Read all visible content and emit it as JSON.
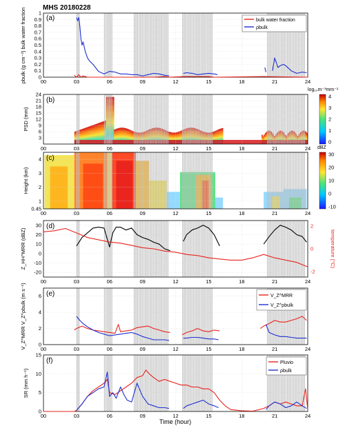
{
  "figure_title": "MHS 20180228",
  "x_axis": {
    "label": "Time (hour)",
    "ticks": [
      "00",
      "03",
      "06",
      "09",
      "12",
      "15",
      "18",
      "21",
      "24"
    ],
    "range": [
      0,
      24
    ]
  },
  "gray_shading_intervals_hours": [
    [
      3.0,
      3.3
    ],
    [
      5.5,
      6.3
    ],
    [
      8.2,
      11.4
    ],
    [
      12.6,
      15.4
    ],
    [
      20.3,
      23.8
    ]
  ],
  "colors": {
    "red": "#e8221c",
    "blue": "#1d2fd1",
    "black": "#000000",
    "gray": "#bdbdbd"
  },
  "colorbar_b": {
    "ticks": [
      "4",
      "3",
      "2",
      "1",
      "0"
    ],
    "unit": "log₁₀m⁻³mm⁻¹"
  },
  "colorbar_c": {
    "ticks": [
      "30",
      "20",
      "10",
      "0",
      "-10"
    ],
    "unit": "dBZ"
  },
  "chart_data": [
    {
      "panel": "(a)",
      "type": "line",
      "ylabel": "ρbulk (g cm⁻³) bulk water fraction",
      "ylim": [
        0,
        1
      ],
      "yticks": [
        "1",
        "0.9",
        "0.8",
        "0.7",
        "0.6",
        "0.5",
        "0.4",
        "0.3",
        "0.2",
        "0.1",
        "0"
      ],
      "legend": [
        "bulk water fraction",
        "ρbulk"
      ],
      "legend_position": "top-right",
      "series": [
        {
          "name": "bulk water fraction",
          "color": "red",
          "x": [
            2.8,
            3.0,
            3.2,
            3.4,
            3.6,
            4.0,
            6.0,
            8.0,
            10.0,
            11.0,
            11.5,
            12.7,
            15.0,
            15.5,
            20.0,
            24.0
          ],
          "y": [
            0.03,
            0.0,
            0.04,
            0.0,
            0.02,
            0.0,
            0.0,
            0.0,
            0.0,
            0.01,
            0.0,
            0.01,
            0.01,
            0.0,
            0.01,
            0.0
          ]
        },
        {
          "name": "ρbulk",
          "color": "blue",
          "x": [
            3.0,
            3.1,
            3.2,
            3.3,
            3.4,
            3.5,
            3.6,
            3.8,
            4.0,
            4.2,
            4.5,
            5.0,
            5.5,
            6.0,
            6.5,
            7.0,
            7.5,
            8.0,
            8.5,
            9.0,
            9.5,
            10.0,
            10.5,
            11.0,
            11.4,
            null,
            12.7,
            13.0,
            13.5,
            14.0,
            14.5,
            15.0,
            15.5,
            15.8,
            null,
            20.1,
            20.2,
            null,
            20.8,
            21.0,
            21.3,
            21.5,
            21.8,
            22.0,
            22.5,
            23.0,
            23.5,
            23.9
          ],
          "y": [
            0.93,
            0.88,
            0.93,
            0.8,
            0.6,
            0.5,
            0.55,
            0.4,
            0.3,
            0.25,
            0.2,
            0.09,
            0.05,
            0.09,
            0.08,
            0.05,
            0.05,
            0.04,
            0.04,
            0.02,
            0.04,
            0.06,
            0.05,
            0.03,
            0.02,
            null,
            0.06,
            0.07,
            0.06,
            0.04,
            0.05,
            0.06,
            0.05,
            0.04,
            null,
            0.15,
            0.08,
            null,
            0.1,
            0.3,
            0.15,
            0.18,
            0.2,
            0.18,
            0.1,
            0.06,
            0.08,
            0.07
          ]
        }
      ]
    },
    {
      "panel": "(b)",
      "type": "heatmap",
      "ylabel": "PSD (mm)",
      "ylim": [
        0,
        24
      ],
      "yticks": [
        "24",
        "21",
        "18",
        "15",
        "12",
        "9",
        "6",
        "3"
      ],
      "colorbar_label": "log₁₀m⁻³mm⁻¹",
      "zlim": [
        0,
        4
      ]
    },
    {
      "panel": "(c)",
      "type": "heatmap",
      "ylabel": "Height (km)",
      "ylim": [
        0.45,
        4.5
      ],
      "yticks": [
        "4",
        "3",
        "2",
        "1",
        "0.45"
      ],
      "colorbar_label": "dBZ",
      "zlim": [
        -10,
        35
      ]
    },
    {
      "panel": "(d)",
      "type": "line",
      "ylabel": "Z_HH^MRR (dBZ)",
      "ylim": [
        -25,
        35
      ],
      "yticks": [
        "30",
        "20",
        "10",
        "0",
        "-10",
        "-20"
      ],
      "y2label": "temperature (°C)",
      "y2lim": [
        -2.5,
        2.5
      ],
      "y2ticks": [
        "2",
        "0",
        "-2"
      ],
      "series": [
        {
          "name": "",
          "color": "black",
          "x": [
            3.0,
            3.5,
            4.0,
            4.5,
            5.0,
            5.5,
            5.8,
            6.0,
            6.3,
            6.6,
            7.0,
            7.5,
            8.0,
            8.5,
            9.0,
            9.5,
            10.0,
            10.5,
            11.0,
            11.5,
            null,
            12.7,
            13.0,
            13.5,
            14.0,
            14.5,
            15.0,
            15.5,
            16.0,
            null,
            20.0,
            20.5,
            21.0,
            21.5,
            22.0,
            22.5,
            23.0,
            23.5,
            23.9
          ],
          "y": [
            8,
            17,
            22,
            27,
            28,
            27,
            15,
            7,
            22,
            28,
            28,
            25,
            27,
            20,
            17,
            15,
            12,
            10,
            5,
            3,
            null,
            13,
            20,
            25,
            27,
            30,
            27,
            20,
            8,
            null,
            10,
            18,
            25,
            30,
            28,
            25,
            20,
            18,
            12
          ]
        },
        {
          "name": "",
          "color": "red",
          "axis": "right",
          "x": [
            0,
            1,
            2,
            3,
            4,
            5,
            6,
            7,
            8,
            9,
            10,
            11,
            12,
            13,
            14,
            15,
            16,
            17,
            18,
            19,
            20,
            21,
            22,
            23,
            24
          ],
          "y": [
            1.5,
            1.6,
            1.8,
            1.4,
            1.0,
            0.8,
            0.6,
            0.5,
            0.3,
            0.1,
            0.0,
            -0.2,
            -0.3,
            -0.5,
            -0.6,
            -0.8,
            -0.9,
            -1.0,
            -1.0,
            -0.8,
            -0.5,
            -0.8,
            -1.0,
            -1.2,
            -1.6
          ]
        }
      ]
    },
    {
      "panel": "(e)",
      "type": "line",
      "ylabel": "V_Z^MRR V_Z^ρbulk (m s⁻¹)",
      "ylim": [
        0,
        7
      ],
      "yticks": [
        "6",
        "4",
        "2",
        "0"
      ],
      "legend": [
        "V_Z^MRR",
        "V_Z^ρbulk"
      ],
      "legend_position": "top-right",
      "series": [
        {
          "name": "V_Z^MRR",
          "color": "red",
          "x": [
            2.8,
            3.0,
            3.5,
            4.0,
            4.5,
            5.0,
            5.5,
            6.0,
            6.5,
            6.8,
            7.0,
            7.5,
            8.0,
            8.5,
            9.0,
            9.5,
            10.0,
            10.5,
            11.0,
            11.5,
            null,
            12.6,
            13.0,
            13.5,
            14.0,
            14.5,
            15.0,
            15.5,
            16.0,
            null,
            19.7,
            20.0,
            20.5,
            21.0,
            21.5,
            22.0,
            22.5,
            23.0,
            23.5,
            23.9
          ],
          "y": [
            1.8,
            2.0,
            2.3,
            2.0,
            1.8,
            1.7,
            1.6,
            1.5,
            1.4,
            2.5,
            1.6,
            1.7,
            1.8,
            2.1,
            2.2,
            2.3,
            2.0,
            1.8,
            1.6,
            1.5,
            null,
            1.2,
            1.5,
            1.7,
            2.0,
            1.7,
            1.6,
            1.8,
            1.7,
            null,
            2.0,
            2.3,
            2.6,
            3.0,
            2.8,
            2.8,
            3.0,
            3.2,
            3.5,
            3.0
          ]
        },
        {
          "name": "V_Z^ρbulk",
          "color": "blue",
          "x": [
            3.0,
            3.3,
            3.6,
            4.0,
            4.5,
            5.0,
            5.5,
            6.0,
            6.5,
            7.0,
            7.5,
            8.0,
            8.5,
            9.0,
            9.5,
            10.0,
            10.5,
            11.0,
            11.4,
            null,
            12.7,
            13.0,
            13.5,
            14.0,
            14.5,
            15.0,
            15.5,
            15.9,
            null,
            20.2,
            20.5,
            21.0,
            21.5,
            22.0,
            22.5,
            23.0,
            23.5,
            23.9
          ],
          "y": [
            3.5,
            3.0,
            2.6,
            2.2,
            1.8,
            1.5,
            1.3,
            1.1,
            1.2,
            1.3,
            1.4,
            1.5,
            1.3,
            1.0,
            0.8,
            0.6,
            0.6,
            0.6,
            0.5,
            null,
            0.8,
            0.8,
            0.9,
            0.9,
            0.8,
            0.7,
            0.7,
            0.6,
            null,
            2.5,
            1.5,
            1.2,
            1.0,
            1.0,
            0.9,
            0.8,
            0.8,
            0.8
          ]
        }
      ]
    },
    {
      "panel": "(f)",
      "type": "line",
      "ylabel": "SR (mm h⁻¹)",
      "ylim": [
        0,
        15
      ],
      "yticks": [
        "15",
        "10",
        "5",
        "0"
      ],
      "legend": [
        "Pluvio",
        "ρbulk"
      ],
      "legend_position": "top-right",
      "series": [
        {
          "name": "Pluvio",
          "color": "red",
          "x": [
            0,
            2.8,
            3.0,
            3.5,
            4.0,
            4.5,
            5.0,
            5.5,
            5.8,
            6.0,
            6.5,
            7.0,
            7.5,
            8.0,
            8.5,
            9.0,
            9.3,
            9.6,
            10.0,
            10.5,
            11.0,
            11.5,
            12.0,
            12.5,
            13.0,
            13.5,
            14.0,
            14.5,
            15.0,
            15.5,
            16.0,
            16.5,
            17.0,
            18.0,
            19.0,
            20.0,
            20.5,
            21.0,
            21.5,
            22.0,
            22.5,
            23.0,
            23.5,
            23.8,
            24.0
          ],
          "y": [
            0,
            0,
            0.3,
            2.0,
            4.0,
            5.5,
            6.5,
            7.5,
            8.5,
            5.0,
            4.5,
            5.5,
            6.5,
            7.5,
            9.0,
            9.5,
            11.0,
            10.0,
            9.0,
            8.0,
            8.5,
            8.0,
            7.5,
            7.0,
            7.0,
            6.5,
            6.5,
            6.0,
            6.0,
            5.0,
            3.0,
            1.5,
            0.5,
            0.2,
            0.1,
            0.8,
            1.5,
            2.5,
            2.0,
            2.5,
            2.0,
            1.5,
            1.5,
            6.0,
            0.5
          ]
        },
        {
          "name": "ρbulk",
          "color": "blue",
          "x": [
            3.0,
            3.5,
            4.0,
            4.5,
            5.0,
            5.5,
            5.8,
            6.0,
            6.3,
            6.6,
            7.0,
            7.3,
            7.6,
            8.0,
            8.5,
            9.0,
            9.5,
            10.0,
            10.5,
            11.0,
            11.4,
            null,
            12.7,
            13.0,
            13.5,
            14.0,
            14.5,
            15.0,
            15.5,
            15.9,
            null,
            20.2,
            20.5,
            21.0,
            21.5,
            22.0,
            22.5,
            23.0,
            23.5,
            23.9
          ],
          "y": [
            0.3,
            2.0,
            4.0,
            5.0,
            6.0,
            6.5,
            10.5,
            4.0,
            5.0,
            3.5,
            6.5,
            4.5,
            3.0,
            2.5,
            7.5,
            4.0,
            2.0,
            1.5,
            1.0,
            1.0,
            0.8,
            null,
            0.8,
            1.5,
            2.0,
            2.5,
            3.0,
            2.0,
            1.5,
            1.0,
            null,
            0.5,
            1.5,
            2.5,
            2.0,
            1.0,
            1.5,
            2.5,
            1.5,
            0.8
          ]
        }
      ]
    }
  ]
}
